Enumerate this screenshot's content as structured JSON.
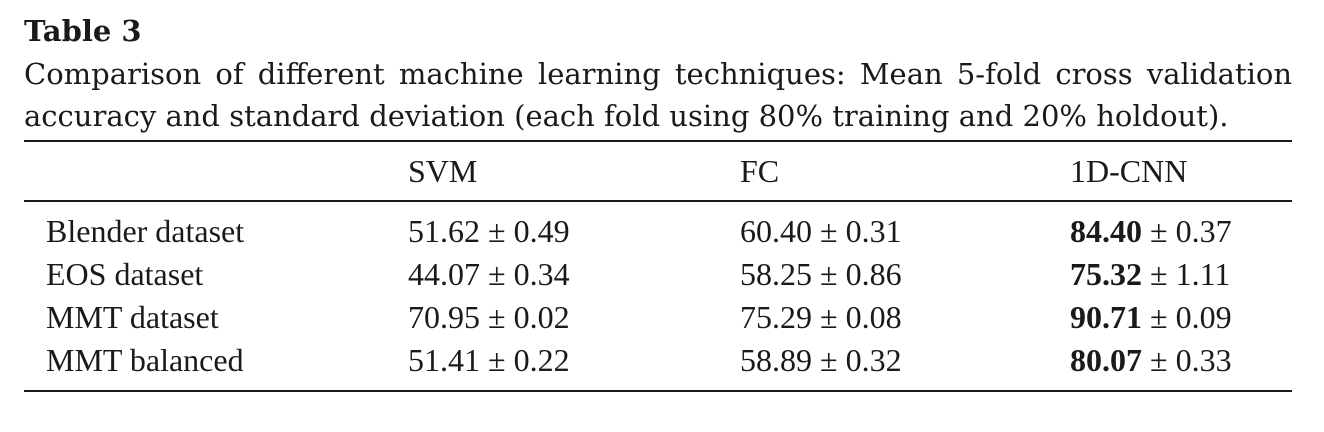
{
  "table": {
    "label": "Table 3",
    "caption_line1": "Comparison of different machine learning techniques: Mean 5-fold cross validation",
    "caption_line2": "accuracy and standard deviation (each fold using 80% training and 20% holdout).",
    "columns": [
      "",
      "SVM",
      "FC",
      "1D-CNN"
    ],
    "pm_symbol": "±",
    "rows": [
      {
        "name": "Blender dataset",
        "cells": [
          {
            "mean": "51.62",
            "sd": "0.49",
            "bold": false
          },
          {
            "mean": "60.40",
            "sd": "0.31",
            "bold": false
          },
          {
            "mean": "84.40",
            "sd": "0.37",
            "bold": true
          }
        ]
      },
      {
        "name": "EOS dataset",
        "cells": [
          {
            "mean": "44.07",
            "sd": "0.34",
            "bold": false
          },
          {
            "mean": "58.25",
            "sd": "0.86",
            "bold": false
          },
          {
            "mean": "75.32",
            "sd": "1.11",
            "bold": true
          }
        ]
      },
      {
        "name": "MMT dataset",
        "cells": [
          {
            "mean": "70.95",
            "sd": "0.02",
            "bold": false
          },
          {
            "mean": "75.29",
            "sd": "0.08",
            "bold": false
          },
          {
            "mean": "90.71",
            "sd": "0.09",
            "bold": true
          }
        ]
      },
      {
        "name": "MMT balanced",
        "cells": [
          {
            "mean": "51.41",
            "sd": "0.22",
            "bold": false
          },
          {
            "mean": "58.89",
            "sd": "0.32",
            "bold": false
          },
          {
            "mean": "80.07",
            "sd": "0.33",
            "bold": true
          }
        ]
      }
    ]
  }
}
